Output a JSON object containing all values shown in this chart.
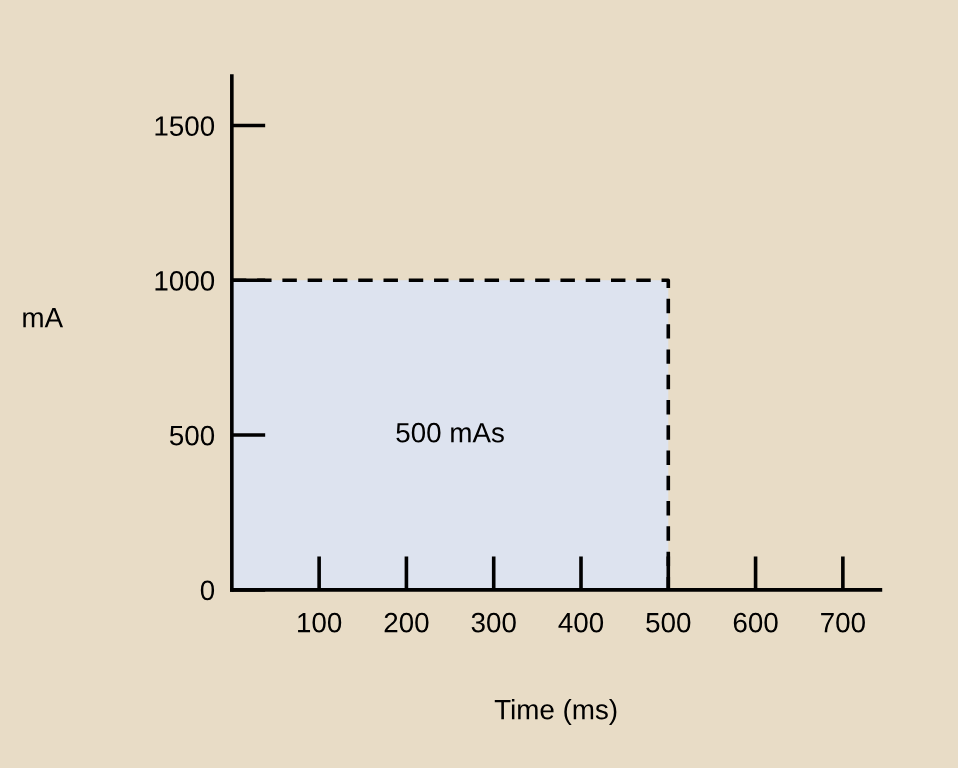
{
  "chart_data": {
    "type": "area",
    "xlabel": "Time (ms)",
    "ylabel": "mA",
    "x": [
      0,
      500
    ],
    "series": [
      {
        "color": "#dde3ef",
        "values": [
          1000,
          1000
        ]
      }
    ],
    "line_style": "dashed",
    "xlim": [
      0,
      743
    ],
    "ylim": [
      0,
      1660
    ],
    "xticks": [
      100,
      200,
      300,
      400,
      500,
      600,
      700
    ],
    "yticks": [
      0,
      500,
      1000,
      1500
    ],
    "annotations": [
      "500 mAs"
    ],
    "grid": false,
    "legend": false,
    "marker": "none"
  }
}
